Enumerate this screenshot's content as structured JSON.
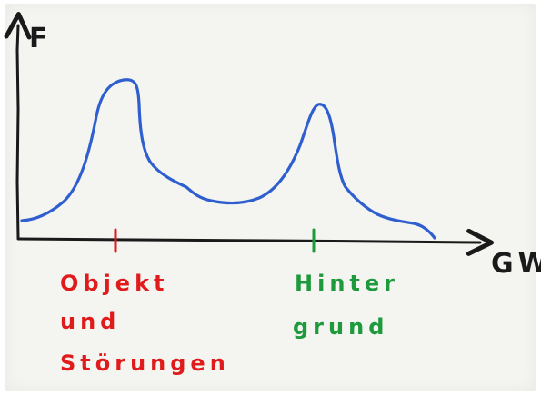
{
  "axes": {
    "y_label": "F",
    "x_label": "GW"
  },
  "markers": {
    "object": {
      "lines": [
        "Objekt",
        "und",
        "Störungen"
      ],
      "color": "#e01b1b"
    },
    "background": {
      "lines": [
        "Hinter",
        "grund"
      ],
      "color": "#1e9a3c"
    }
  },
  "colors": {
    "axis": "#1a1a1a",
    "curve": "#2f5fcf"
  }
}
